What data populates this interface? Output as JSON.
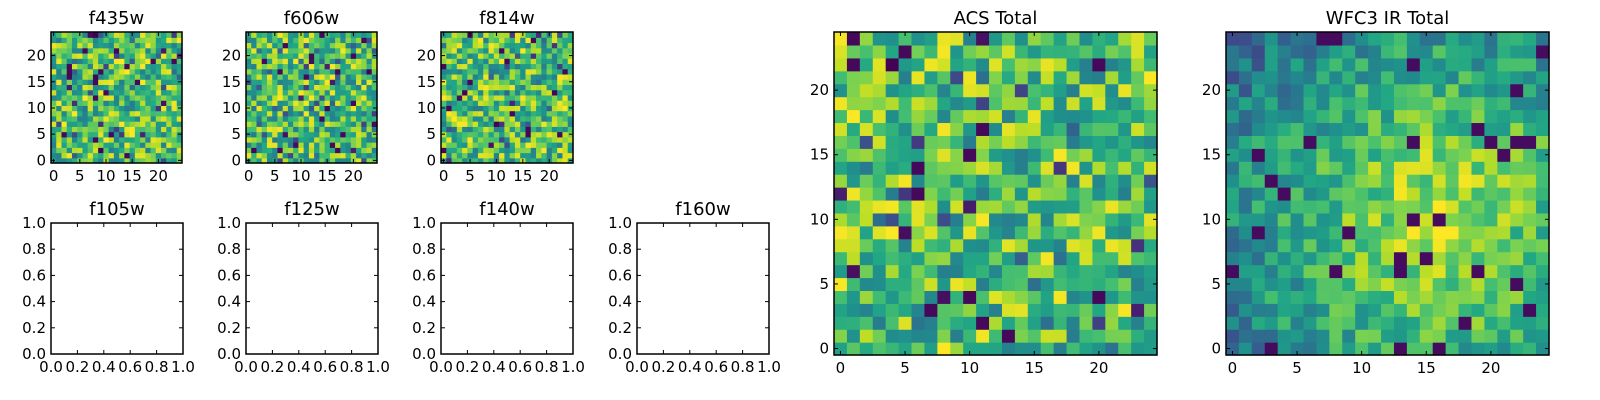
{
  "chart_data": [
    {
      "type": "heatmap",
      "title": "f435w",
      "grid_size": 25,
      "xlim": [
        -0.5,
        24.5
      ],
      "ylim": [
        -0.5,
        24.5
      ],
      "xticks": [
        0,
        5,
        10,
        15,
        20
      ],
      "yticks": [
        0,
        5,
        10,
        15,
        20
      ],
      "colormap": "viridis",
      "texture": "noise",
      "seed": 11
    },
    {
      "type": "heatmap",
      "title": "f606w",
      "grid_size": 25,
      "xlim": [
        -0.5,
        24.5
      ],
      "ylim": [
        -0.5,
        24.5
      ],
      "xticks": [
        0,
        5,
        10,
        15,
        20
      ],
      "yticks": [
        0,
        5,
        10,
        15,
        20
      ],
      "colormap": "viridis",
      "texture": "noise",
      "seed": 23
    },
    {
      "type": "heatmap",
      "title": "f814w",
      "grid_size": 25,
      "xlim": [
        -0.5,
        24.5
      ],
      "ylim": [
        -0.5,
        24.5
      ],
      "xticks": [
        0,
        5,
        10,
        15,
        20
      ],
      "yticks": [
        0,
        5,
        10,
        15,
        20
      ],
      "colormap": "viridis",
      "texture": "noise",
      "seed": 37
    },
    {
      "type": "heatmap",
      "title": "f105w",
      "empty": true,
      "xlim": [
        0,
        1
      ],
      "ylim": [
        0,
        1
      ],
      "xticks": [
        "0.0",
        "0.2",
        "0.4",
        "0.6",
        "0.8",
        "1.0"
      ],
      "yticks": [
        "0.0",
        "0.2",
        "0.4",
        "0.6",
        "0.8",
        "1.0"
      ]
    },
    {
      "type": "heatmap",
      "title": "f125w",
      "empty": true,
      "xlim": [
        0,
        1
      ],
      "ylim": [
        0,
        1
      ],
      "xticks": [
        "0.0",
        "0.2",
        "0.4",
        "0.6",
        "0.8",
        "1.0"
      ],
      "yticks": [
        "0.0",
        "0.2",
        "0.4",
        "0.6",
        "0.8",
        "1.0"
      ]
    },
    {
      "type": "heatmap",
      "title": "f140w",
      "empty": true,
      "xlim": [
        0,
        1
      ],
      "ylim": [
        0,
        1
      ],
      "xticks": [
        "0.0",
        "0.2",
        "0.4",
        "0.6",
        "0.8",
        "1.0"
      ],
      "yticks": [
        "0.0",
        "0.2",
        "0.4",
        "0.6",
        "0.8",
        "1.0"
      ]
    },
    {
      "type": "heatmap",
      "title": "f160w",
      "empty": true,
      "xlim": [
        0,
        1
      ],
      "ylim": [
        0,
        1
      ],
      "xticks": [
        "0.0",
        "0.2",
        "0.4",
        "0.6",
        "0.8",
        "1.0"
      ],
      "yticks": [
        "0.0",
        "0.2",
        "0.4",
        "0.6",
        "0.8",
        "1.0"
      ]
    },
    {
      "type": "heatmap",
      "title": "ACS Total",
      "grid_size": 25,
      "xlim": [
        -0.5,
        24.5
      ],
      "ylim": [
        -0.5,
        24.5
      ],
      "xticks": [
        0,
        5,
        10,
        15,
        20
      ],
      "yticks": [
        0,
        5,
        10,
        15,
        20
      ],
      "colormap": "viridis",
      "texture": "noise",
      "seed": 51
    },
    {
      "type": "heatmap",
      "title": "WFC3 IR Total",
      "grid_size": 25,
      "xlim": [
        -0.5,
        24.5
      ],
      "ylim": [
        -0.5,
        24.5
      ],
      "xticks": [
        0,
        5,
        10,
        15,
        20
      ],
      "yticks": [
        0,
        5,
        10,
        15,
        20
      ],
      "colormap": "viridis",
      "texture": "smooth-blob",
      "seed": 67
    }
  ]
}
